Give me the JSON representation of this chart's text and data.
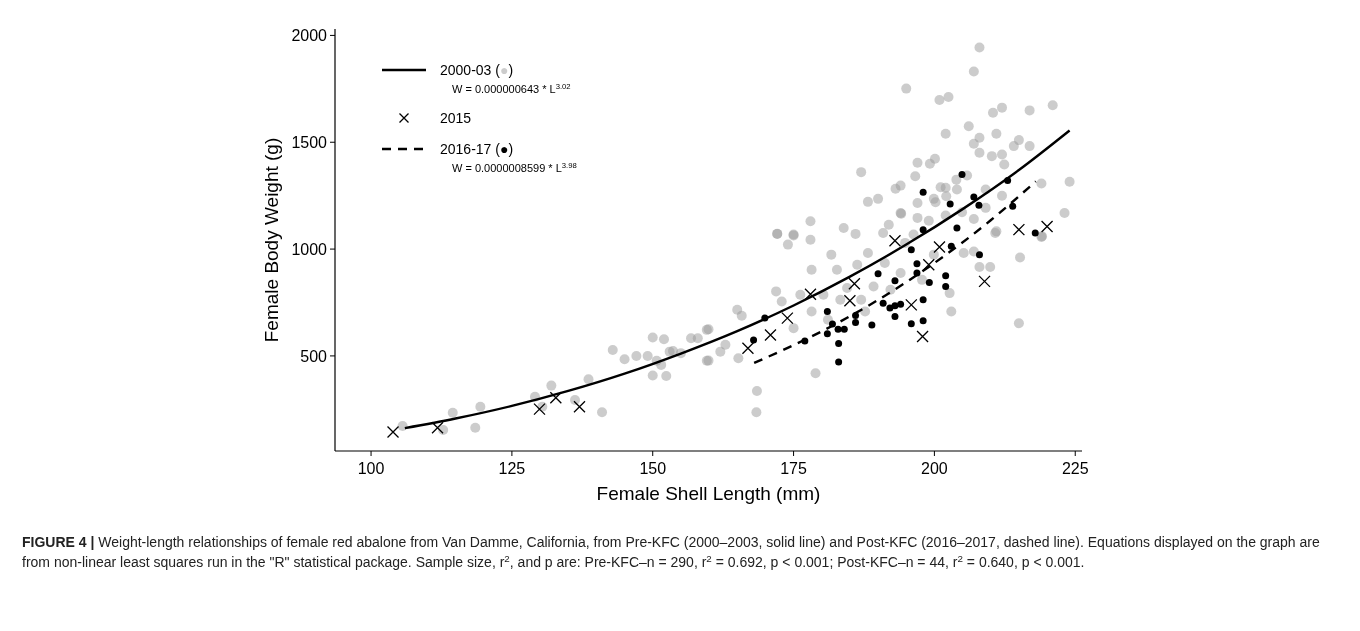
{
  "chart_data": {
    "type": "scatter",
    "xlabel": "Female Shell Length (mm)",
    "ylabel": "Female Body Weight (g)",
    "xlim": [
      93.6,
      226.2
    ],
    "xticks": [
      100,
      125,
      150,
      175,
      200,
      225
    ],
    "ylim": [
      55,
      2030
    ],
    "yticks": [
      500,
      1000,
      1500,
      2000
    ],
    "legend": "top left",
    "annotations": [
      "W = 0.000000643 * L$^{3.02}$",
      "W = 0.0000008599 * L$^{3.98}$",
      "FIGURE 4 | Weight-length relationships of female red abalone from Van Damme, California, from Pre-KFC (2000–2003, solid line) and Post-KFC (2016–2017, dashed line). Equations displayed on the graph are from non-linear least squares run in the \"R\" statistical package. Sample size, r$^{2}$, and p are: Pre-KFC–n = 290, r$^{2}$ = 0.692, p < 0.001; Post-KFC–n = 44, r$^{2}$ = 0.640, p < 0.001."
    ],
    "series": [
      {
        "color": "#999999",
        "marker": "circle",
        "x": [
          105.6,
          112.8,
          114.5,
          118.5,
          119.4,
          129.1,
          130.4,
          132.0,
          136.2,
          138.6,
          141.0,
          142.9,
          145.0,
          147.1,
          149.1,
          150.0,
          150.0,
          150.7,
          151.5,
          152.0,
          152.4,
          153.0,
          153.6,
          155.0,
          156.8,
          158.0,
          159.6,
          159.6,
          159.9,
          159.9,
          162.0,
          162.9,
          165.0,
          165.8,
          165.2,
          168.5,
          168.4,
          171.9,
          172.1,
          174.0,
          175.0,
          172.9,
          175.0,
          176.2,
          178.0,
          178.2,
          178.2,
          178.9,
          180.3,
          181.1,
          181.7,
          182.7,
          183.3,
          184.5,
          186.3,
          187.0,
          187.7,
          188.2,
          189.2,
          191.2,
          192.2,
          194.0,
          194.8,
          196.3,
          197.8,
          199.9,
          202.7,
          203.0,
          205.2,
          207.0,
          208.0,
          209.9,
          215.2,
          215.0,
          219.0,
          210.8,
          208.0,
          207.0,
          195.0,
          200.9,
          202.5,
          210.4,
          212.0,
          216.9,
          221.0,
          206.1,
          202.0,
          211.0,
          208.0,
          207.0,
          208.0,
          215.0,
          214.1,
          216.9,
          210.2,
          212.0,
          212.4,
          187.0,
          197.0,
          199.2,
          200.1,
          196.6,
          194.0,
          193.1,
          188.2,
          190.0,
          183.9,
          186.0,
          172.1,
          175.0,
          178.0,
          202.0,
          204.0,
          201.1,
          205.8,
          203.9,
          202.1,
          199.9,
          197.0,
          194.1,
          197.0,
          199.0,
          202.0,
          204.9,
          207.0,
          209.1,
          209.1,
          212.0,
          211.0,
          219.0,
          224.0,
          223.1,
          219.1,
          191.9,
          190.9,
          194.0,
          200.2
        ],
        "values": [
          172,
          153,
          234,
          164,
          262,
          309,
          262,
          361,
          294,
          391,
          236,
          528,
          484,
          500,
          500,
          586,
          408,
          477,
          458,
          578,
          406,
          520,
          523,
          513,
          583,
          583,
          622,
          477,
          625,
          478,
          520,
          552,
          716,
          688,
          489,
          336,
          236,
          802,
          1072,
          1021,
          1068,
          755,
          630,
          786,
          1044,
          903,
          708,
          419,
          786,
          669,
          974,
          903,
          763,
          818,
          927,
          763,
          708,
          982,
          825,
          935,
          810,
          888,
          1029,
          1068,
          856,
          974,
          794,
          708,
          982,
          989,
          916,
          916,
          961,
          653,
          1057,
          1075,
          1943,
          1831,
          1751,
          1698,
          1712,
          1638,
          1662,
          1649,
          1673,
          1575,
          1540,
          1540,
          1521,
          1493,
          1451,
          1510,
          1482,
          1482,
          1435,
          1443,
          1396,
          1360,
          1404,
          1399,
          1423,
          1341,
          1297,
          1282,
          1221,
          1235,
          1099,
          1071,
          1071,
          1064,
          1130,
          1287,
          1279,
          1289,
          1344,
          1325,
          1247,
          1235,
          1216,
          1165,
          1146,
          1133,
          1157,
          1172,
          1141,
          1279,
          1193,
          1250,
          1083,
          1307,
          1315,
          1169,
          1060,
          1114,
          1075,
          1169,
          1219
        ]
      },
      {
        "type": "line",
        "name": "2000-03 (●)",
        "color": "#000000",
        "line_style": "solid",
        "x": [
          106,
          115,
          125,
          135,
          145,
          155,
          165,
          175,
          185,
          195,
          205,
          215,
          224
        ],
        "values": [
          162,
          207,
          266,
          336,
          417,
          511,
          616,
          736,
          871,
          1021,
          1187,
          1370,
          1555
        ]
      },
      {
        "name": "2015",
        "color": "#000000",
        "marker": "cross",
        "x": [
          103.9,
          111.8,
          129.9,
          132.8,
          137.0,
          166.9,
          170.9,
          173.9,
          178.0,
          185.0,
          185.8,
          193.0,
          195.9,
          197.9,
          199.0,
          200.9,
          208.9,
          215.0,
          220.0
        ],
        "values": [
          144,
          164,
          251,
          304,
          262,
          536,
          598,
          677,
          789,
          758,
          838,
          1039,
          739,
          591,
          927,
          1010,
          849,
          1091,
          1106
        ]
      },
      {
        "color": "#000000",
        "marker": "circle",
        "x": [
          167.9,
          169.9,
          177.0,
          181.0,
          181.0,
          181.9,
          182.9,
          184.0,
          183.0,
          183.0,
          186.0,
          186.0,
          188.9,
          190.0,
          190.9,
          192.1,
          193.0,
          193.0,
          193.0,
          194.0,
          195.9,
          195.9,
          196.9,
          196.9,
          198.0,
          198.0,
          199.1,
          202.0,
          202.0,
          203.0,
          208.0,
          217.9,
          204.9,
          198.0,
          202.8,
          207.0,
          207.9,
          213.0,
          213.9,
          198.0,
          204.0
        ],
        "values": [
          575,
          677,
          570,
          708,
          604,
          649,
          625,
          625,
          558,
          472,
          689,
          656,
          645,
          885,
          747,
          724,
          852,
          735,
          684,
          742,
          997,
          650,
          931,
          888,
          763,
          664,
          844,
          875,
          825,
          1013,
          974,
          1075,
          1349,
          1266,
          1211,
          1244,
          1205,
          1321,
          1200,
          1091,
          1099
        ]
      },
      {
        "type": "line",
        "name": "2016-17 (●)",
        "color": "#000000",
        "line_style": "dashed",
        "x": [
          168,
          180,
          190,
          200,
          210,
          218
        ],
        "values": [
          467,
          615,
          762,
          935,
          1135,
          1317
        ]
      }
    ]
  }
}
